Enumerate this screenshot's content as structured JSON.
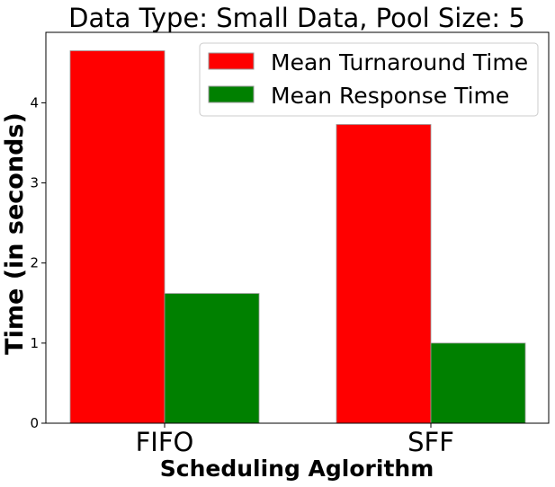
{
  "chart_data": {
    "type": "bar",
    "title": "Data Type: Small Data, Pool Size: 5",
    "xlabel": "Scheduling Aglorithm",
    "ylabel": "Time (in seconds)",
    "categories": [
      "FIFO",
      "SFF"
    ],
    "series": [
      {
        "name": "Mean Turnaround Time",
        "color": "#ff0000",
        "values": [
          4.65,
          3.73
        ]
      },
      {
        "name": "Mean Response Time",
        "color": "#008000",
        "values": [
          1.62,
          1.0
        ]
      }
    ],
    "ylim": [
      0,
      4.88
    ],
    "yticks": [
      0,
      1,
      2,
      3,
      4
    ],
    "grid": false,
    "legend": "top-right"
  }
}
